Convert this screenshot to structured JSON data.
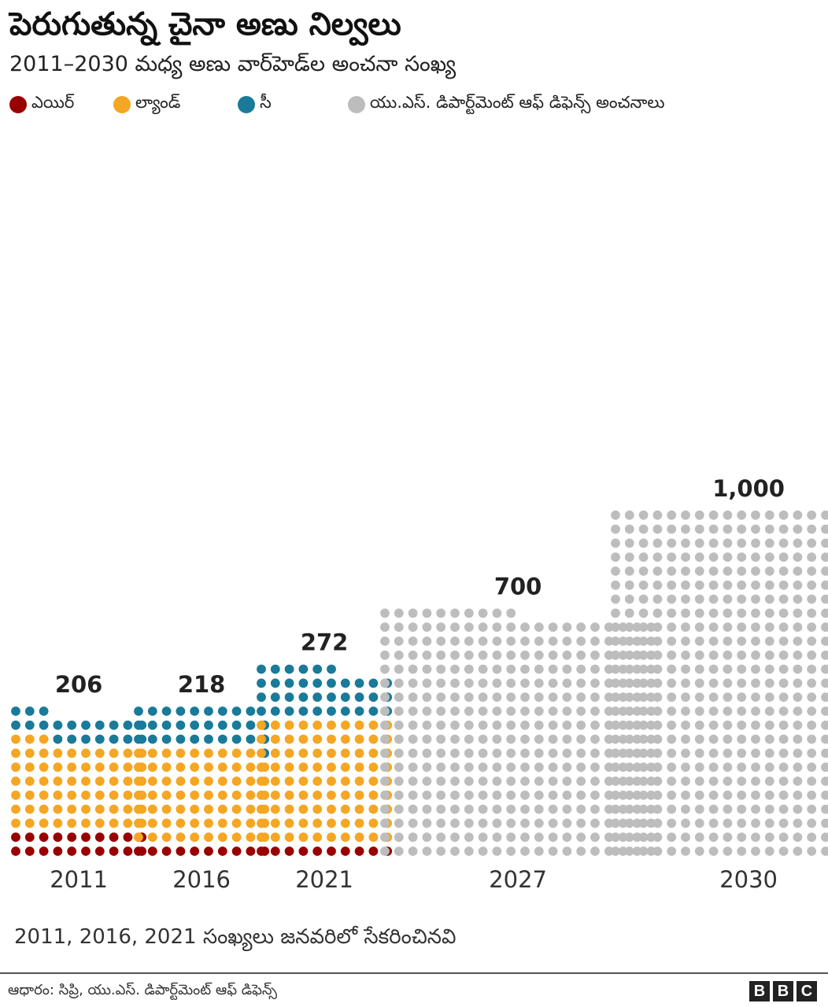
{
  "header": {
    "title": "పెరుగుతున్న చైనా అణు నిల్వలు",
    "subtitle": "2011–2030 మధ్య అణు వార్‌హెడ్‌ల అంచనా సంఖ్య"
  },
  "legend": [
    {
      "key": "air",
      "label": "ఎయిర్",
      "color": "#990000"
    },
    {
      "key": "land",
      "label": "ల్యాండ్",
      "color": "#f5a623"
    },
    {
      "key": "sea",
      "label": "సీ",
      "color": "#1a7a9a"
    },
    {
      "key": "estimate",
      "label": "యు.ఎస్. డిపార్ట్‌మెంట్ ఆఫ్ డిఫెన్స్ అంచనాలు",
      "color": "#bdbdbd"
    }
  ],
  "chart_data": {
    "type": "waffle",
    "title": "పెరుగుతున్న చైనా అణు నిల్వలు",
    "categories": [
      "2011",
      "2016",
      "2021",
      "2027",
      "2030"
    ],
    "totals": [
      "206",
      "218",
      "272",
      "700",
      "1,000"
    ],
    "series": [
      {
        "name": "ఎయిర్",
        "key": "air",
        "values": [
          40,
          20,
          20,
          0,
          0
        ]
      },
      {
        "name": "ల్యాండ్",
        "key": "land",
        "values": [
          126,
          138,
          180,
          0,
          0
        ]
      },
      {
        "name": "సీ",
        "key": "sea",
        "values": [
          40,
          60,
          72,
          0,
          0
        ]
      },
      {
        "name": "యు.ఎస్. డిపార్ట్‌మెంట్ ఆఫ్ డిఫెన్స్ అంచనాలు",
        "key": "estimate",
        "values": [
          0,
          0,
          0,
          700,
          1000
        ]
      }
    ],
    "columns_per_row": [
      10,
      10,
      10,
      20,
      20
    ],
    "units_per_dot": 2
  },
  "footer": {
    "note": "2011, 2016, 2021 సంఖ్యలు జనవరిలో సేకరించినవి",
    "source": "ఆధారం: సిప్రి, యు.ఎస్. డిపార్ట్‌మెంట్ ఆఫ్ డిఫెన్స్",
    "brand": [
      "B",
      "B",
      "C"
    ]
  }
}
